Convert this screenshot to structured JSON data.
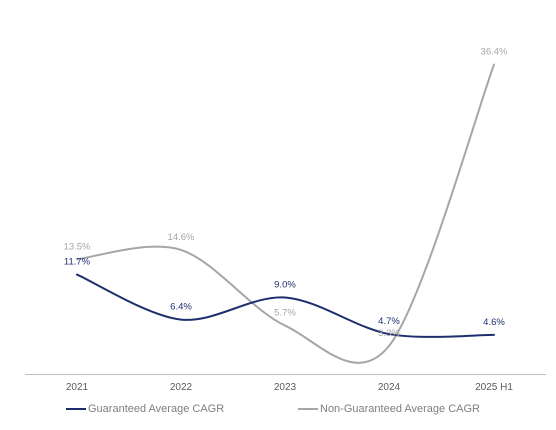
{
  "chart_data": {
    "type": "line",
    "categories": [
      "2021",
      "2022",
      "2023",
      "2024",
      "2025 H1"
    ],
    "series": [
      {
        "name": "Guaranteed Average CAGR",
        "values": [
          11.7,
          6.4,
          9.0,
          4.7,
          4.6
        ],
        "labels": [
          "11.7%",
          "6.4%",
          "9.0%",
          "4.7%",
          "4.6%"
        ],
        "color": "#1f2f6e"
      },
      {
        "name": "Non-Guaranteed Average CAGR",
        "values": [
          13.5,
          14.6,
          5.7,
          3.3,
          36.4
        ],
        "labels": [
          "13.5%",
          "14.6%",
          "5.7%",
          "3.3%",
          "36.4%"
        ],
        "color": "#a6a6a6"
      }
    ],
    "ylim": [
      0,
      40
    ],
    "grid": false,
    "legend_position": "bottom",
    "smooth": true
  }
}
